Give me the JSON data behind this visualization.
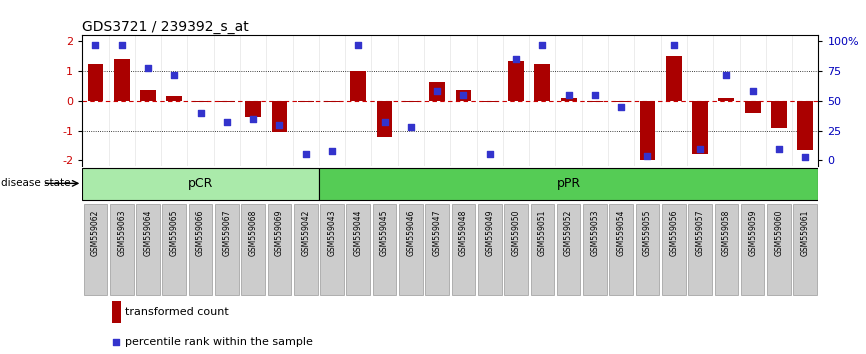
{
  "title": "GDS3721 / 239392_s_at",
  "samples": [
    "GSM559062",
    "GSM559063",
    "GSM559064",
    "GSM559065",
    "GSM559066",
    "GSM559067",
    "GSM559068",
    "GSM559069",
    "GSM559042",
    "GSM559043",
    "GSM559044",
    "GSM559045",
    "GSM559046",
    "GSM559047",
    "GSM559048",
    "GSM559049",
    "GSM559050",
    "GSM559051",
    "GSM559052",
    "GSM559053",
    "GSM559054",
    "GSM559055",
    "GSM559056",
    "GSM559057",
    "GSM559058",
    "GSM559059",
    "GSM559060",
    "GSM559061"
  ],
  "bar_values": [
    1.25,
    1.4,
    0.35,
    0.18,
    -0.05,
    -0.05,
    -0.55,
    -1.05,
    -0.05,
    -0.05,
    1.0,
    -1.2,
    -0.05,
    0.65,
    0.35,
    -0.05,
    1.35,
    1.25,
    0.1,
    -0.05,
    -0.05,
    -2.0,
    1.5,
    -1.8,
    0.1,
    -0.4,
    -0.9,
    -1.65
  ],
  "percentile_values": [
    97,
    97,
    78,
    72,
    40,
    32,
    35,
    30,
    5,
    8,
    97,
    32,
    28,
    58,
    55,
    5,
    85,
    97,
    55,
    55,
    45,
    4,
    97,
    10,
    72,
    58,
    10,
    3
  ],
  "group_labels": [
    "pCR",
    "pPR"
  ],
  "pcr_count": 9,
  "ppr_count": 19,
  "bar_color": "#AA0000",
  "dot_color": "#3333CC",
  "zero_line_color": "#CC0000",
  "ylim_min": -2.2,
  "ylim_max": 2.2,
  "y_left_ticks": [
    -2,
    -1,
    0,
    1,
    2
  ],
  "dotted_line_y": [
    1.0,
    -1.0
  ],
  "background_color": "#ffffff",
  "disease_state_label": "disease state",
  "legend_bar_label": "transformed count",
  "legend_dot_label": "percentile rank within the sample",
  "pcr_color": "#aaeaaa",
  "ppr_color": "#55cc55",
  "xlabel_bg": "#cccccc"
}
